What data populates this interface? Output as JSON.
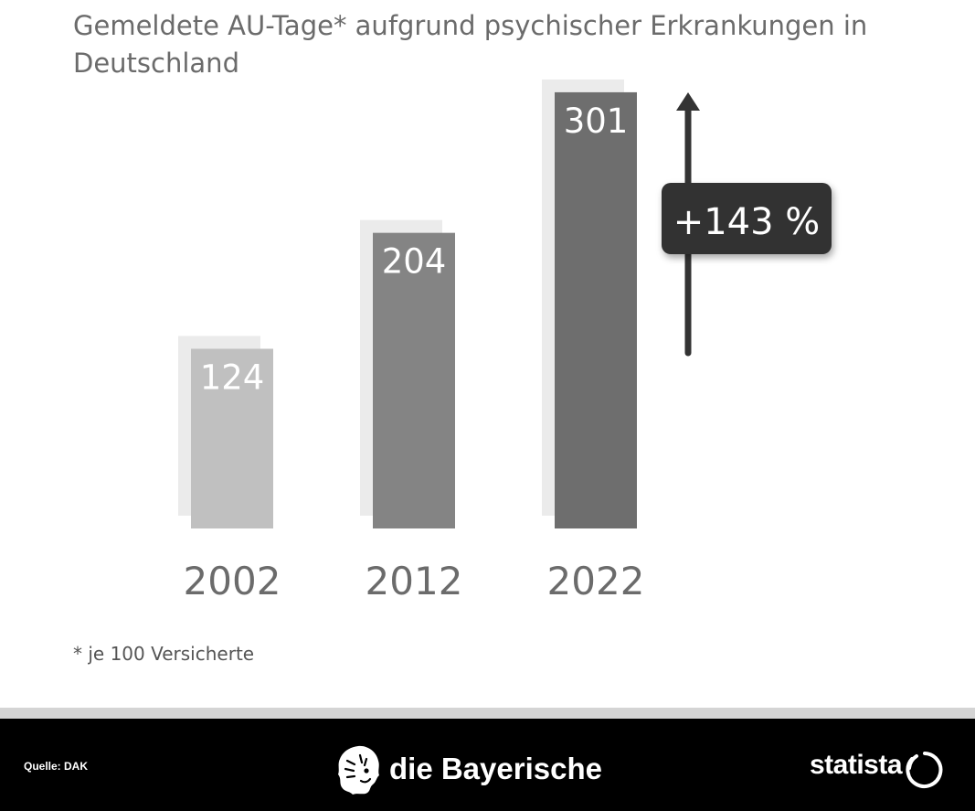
{
  "chart_data": {
    "type": "bar",
    "title": "Gemeldete AU-Tage* aufgrund psychischer Erkrankungen in Deutschland",
    "categories": [
      "2002",
      "2012",
      "2022"
    ],
    "values": [
      124,
      204,
      301
    ],
    "value_labels": [
      "124",
      "204",
      "301"
    ],
    "annotation": "+143 %",
    "footnote": "* je 100 Versicherte",
    "bar_colors": [
      "#c0c0c0",
      "#848484",
      "#6e6e6e"
    ],
    "shadow_color": "#ebebeb",
    "legend": "none",
    "grid": false
  },
  "footer": {
    "source": "Quelle: DAK",
    "brand": "die Bayerische",
    "logo_text": "statista"
  },
  "icons": {
    "brand_logo": "lion-head-icon",
    "statista_logo": "statista-circle-icon"
  }
}
